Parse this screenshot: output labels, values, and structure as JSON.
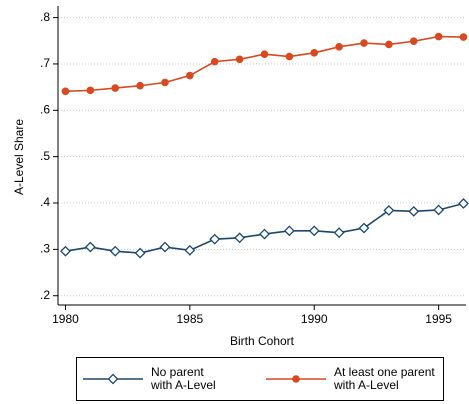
{
  "chart_data": {
    "type": "line",
    "x_label": "Birth Cohort",
    "y_label": "A-Level Share",
    "x": [
      1980,
      1981,
      1982,
      1983,
      1984,
      1985,
      1986,
      1987,
      1988,
      1989,
      1990,
      1991,
      1992,
      1993,
      1994,
      1995,
      1996
    ],
    "series": [
      {
        "name": "No parent\nwith A-Level",
        "color": "#1a476f",
        "marker": "diamond",
        "values": [
          0.296,
          0.305,
          0.296,
          0.292,
          0.305,
          0.298,
          0.322,
          0.325,
          0.333,
          0.34,
          0.34,
          0.336,
          0.346,
          0.384,
          0.382,
          0.385,
          0.399
        ]
      },
      {
        "name": "At least one parent\nwith A-Level",
        "color": "#d9481e",
        "marker": "circle",
        "values": [
          0.641,
          0.643,
          0.648,
          0.653,
          0.66,
          0.675,
          0.705,
          0.71,
          0.721,
          0.716,
          0.724,
          0.737,
          0.745,
          0.742,
          0.749,
          0.759,
          0.758
        ]
      }
    ],
    "xlim": [
      1979.7,
      1996.1
    ],
    "ylim": [
      0.18,
      0.825
    ],
    "xticks": [
      1980,
      1985,
      1990,
      1995
    ],
    "yticks": [
      {
        "value": 0.2,
        "label": ".2"
      },
      {
        "value": 0.3,
        "label": ".3"
      },
      {
        "value": 0.4,
        "label": ".4"
      },
      {
        "value": 0.5,
        "label": ".5"
      },
      {
        "value": 0.6,
        "label": ".6"
      },
      {
        "value": 0.7,
        "label": ".7"
      },
      {
        "value": 0.8,
        "label": ".8"
      }
    ],
    "grid": true,
    "legend": "bottom"
  }
}
